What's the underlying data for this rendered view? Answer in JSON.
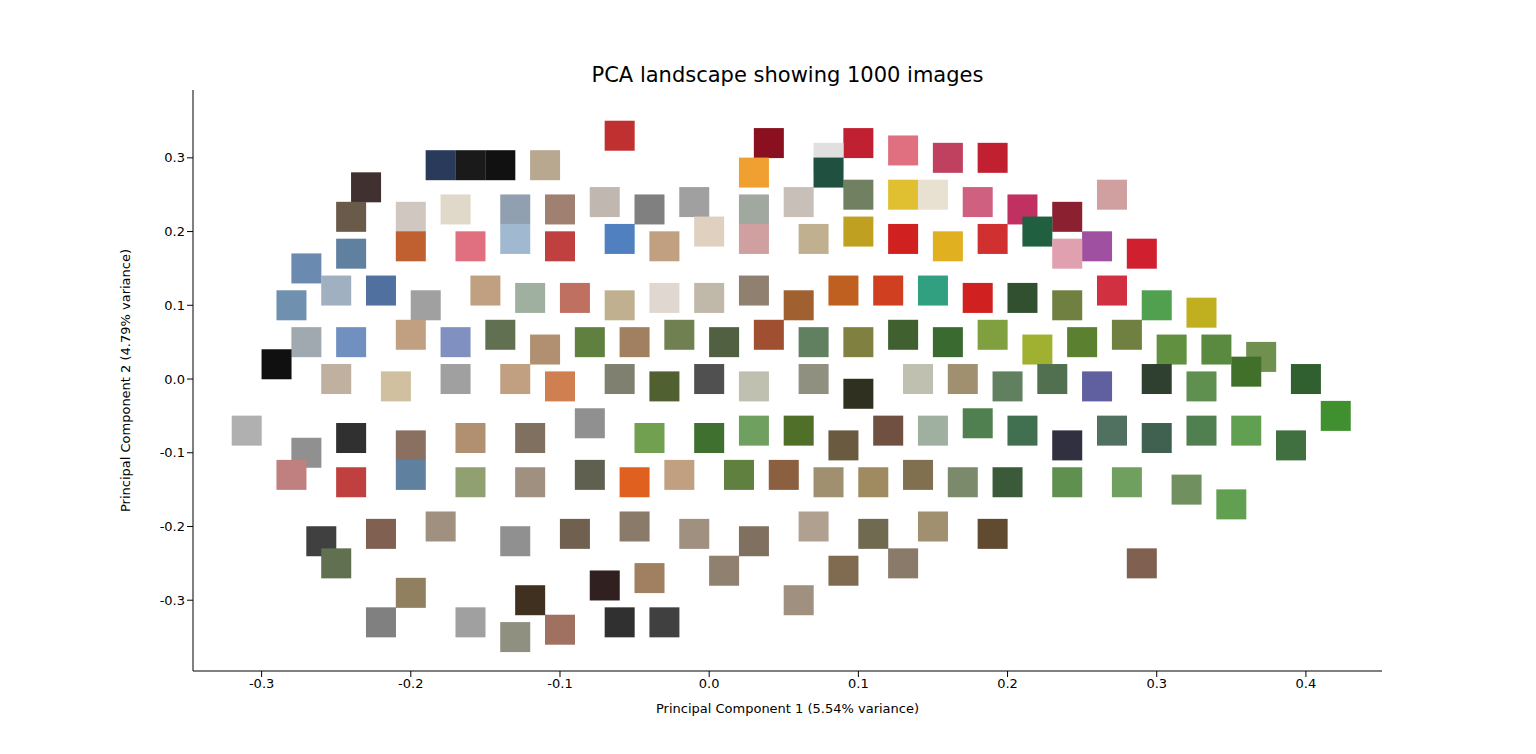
{
  "chart_data": {
    "type": "scatter",
    "title": "PCA landscape showing 1000 images",
    "x_label": "Principal Component 1 (5.54% variance)",
    "y_label": "Principal Component 2 (4.79% variance)",
    "marker": "square",
    "grid": false,
    "xlim": [
      -0.346,
      0.451
    ],
    "ylim": [
      -0.396,
      0.392
    ],
    "xticks": [
      -0.3,
      -0.2,
      -0.1,
      {
        "value": 0,
        "label": "0.0"
      },
      0.1,
      0.2,
      0.3,
      0.4
    ],
    "yticks": [
      -0.3,
      -0.2,
      -0.1,
      {
        "value": 0,
        "label": "0.0"
      },
      0.1,
      0.2,
      0.3
    ],
    "x": [
      -0.18,
      -0.16,
      -0.14,
      -0.11,
      -0.06,
      0.04,
      0.1,
      0.13,
      0.16,
      0.19,
      0.27,
      0.03,
      0.08,
      -0.23,
      -0.24,
      -0.2,
      -0.17,
      -0.13,
      -0.1,
      -0.07,
      -0.04,
      -0.01,
      0.03,
      0.06,
      0.1,
      0.13,
      0.15,
      0.18,
      0.21,
      0.24,
      0.08,
      -0.27,
      -0.24,
      -0.2,
      -0.16,
      -0.13,
      -0.1,
      -0.06,
      -0.03,
      0.0,
      0.03,
      0.07,
      0.1,
      0.13,
      0.16,
      0.19,
      0.22,
      0.26,
      0.29,
      0.24,
      -0.28,
      -0.25,
      -0.22,
      -0.19,
      -0.15,
      -0.12,
      -0.09,
      -0.06,
      -0.03,
      0.0,
      0.03,
      0.06,
      0.09,
      0.12,
      0.15,
      0.18,
      0.21,
      0.24,
      0.27,
      0.3,
      0.33,
      -0.27,
      -0.24,
      -0.2,
      -0.17,
      -0.14,
      -0.11,
      -0.08,
      -0.05,
      -0.02,
      0.01,
      0.04,
      0.07,
      0.1,
      0.13,
      0.16,
      0.19,
      0.22,
      0.25,
      0.28,
      0.31,
      0.34,
      0.37,
      -0.29,
      -0.25,
      -0.21,
      -0.17,
      -0.13,
      -0.1,
      -0.06,
      -0.03,
      0.0,
      0.03,
      0.07,
      0.1,
      0.14,
      0.17,
      0.2,
      0.23,
      0.26,
      0.3,
      0.33,
      0.36,
      0.4,
      0.42,
      -0.31,
      -0.27,
      -0.24,
      -0.2,
      -0.16,
      -0.12,
      -0.08,
      -0.04,
      0.0,
      0.03,
      0.06,
      0.09,
      0.12,
      0.15,
      0.18,
      0.21,
      0.24,
      0.27,
      0.3,
      0.33,
      0.36,
      0.39,
      -0.28,
      -0.24,
      -0.2,
      -0.16,
      -0.12,
      -0.08,
      -0.05,
      -0.02,
      0.02,
      0.05,
      0.08,
      0.11,
      0.14,
      0.17,
      0.2,
      0.24,
      0.28,
      0.32,
      0.35,
      -0.26,
      -0.22,
      -0.18,
      -0.13,
      -0.09,
      -0.05,
      -0.01,
      0.03,
      0.07,
      0.11,
      0.15,
      0.19,
      0.29,
      -0.25,
      -0.22,
      -0.2,
      -0.16,
      -0.13,
      -0.1,
      -0.12,
      -0.07,
      -0.04,
      -0.06,
      -0.03,
      0.01,
      0.06,
      0.09,
      0.13
    ],
    "values": [
      0.29,
      0.29,
      0.29,
      0.29,
      0.33,
      0.32,
      0.32,
      0.31,
      0.3,
      0.3,
      0.25,
      0.28,
      0.3,
      0.26,
      0.22,
      0.22,
      0.23,
      0.23,
      0.23,
      0.24,
      0.23,
      0.24,
      0.23,
      0.24,
      0.25,
      0.25,
      0.25,
      0.24,
      0.23,
      0.22,
      0.28,
      0.15,
      0.17,
      0.18,
      0.18,
      0.19,
      0.18,
      0.19,
      0.18,
      0.2,
      0.19,
      0.19,
      0.2,
      0.19,
      0.18,
      0.19,
      0.2,
      0.18,
      0.17,
      0.17,
      0.1,
      0.12,
      0.12,
      0.1,
      0.12,
      0.11,
      0.11,
      0.1,
      0.11,
      0.11,
      0.12,
      0.1,
      0.12,
      0.12,
      0.12,
      0.11,
      0.11,
      0.1,
      0.12,
      0.1,
      0.09,
      0.05,
      0.05,
      0.06,
      0.05,
      0.06,
      0.04,
      0.05,
      0.05,
      0.06,
      0.05,
      0.06,
      0.05,
      0.05,
      0.06,
      0.05,
      0.06,
      0.04,
      0.05,
      0.06,
      0.04,
      0.04,
      0.03,
      0.02,
      0.0,
      -0.01,
      0.0,
      0.0,
      -0.01,
      0.0,
      -0.01,
      0.0,
      -0.01,
      0.0,
      -0.02,
      0.0,
      0.0,
      -0.01,
      0.0,
      -0.01,
      0.0,
      -0.01,
      0.01,
      0.0,
      -0.05,
      -0.07,
      -0.1,
      -0.08,
      -0.09,
      -0.08,
      -0.08,
      -0.06,
      -0.08,
      -0.08,
      -0.07,
      -0.07,
      -0.09,
      -0.07,
      -0.07,
      -0.06,
      -0.07,
      -0.09,
      -0.07,
      -0.08,
      -0.07,
      -0.07,
      -0.09,
      -0.13,
      -0.14,
      -0.13,
      -0.14,
      -0.14,
      -0.13,
      -0.14,
      -0.13,
      -0.13,
      -0.13,
      -0.14,
      -0.14,
      -0.13,
      -0.14,
      -0.14,
      -0.14,
      -0.14,
      -0.15,
      -0.17,
      -0.22,
      -0.21,
      -0.2,
      -0.22,
      -0.21,
      -0.2,
      -0.21,
      -0.22,
      -0.2,
      -0.21,
      -0.2,
      -0.21,
      -0.25,
      -0.25,
      -0.33,
      -0.29,
      -0.33,
      -0.35,
      -0.34,
      -0.3,
      -0.28,
      -0.27,
      -0.33,
      -0.33,
      -0.26,
      -0.3,
      -0.26,
      -0.25
    ],
    "colors": [
      "#2a3a5a",
      "#1a1a1a",
      "#111111",
      "#b8a890",
      "#c03030",
      "#8a1020",
      "#c02030",
      "#e07080",
      "#c04060",
      "#c02030",
      "#d0a0a0",
      "#f0a030",
      "#e0e0e0",
      "#403030",
      "#6a5a4a",
      "#d0c8c0",
      "#e0d8c8",
      "#90a0b0",
      "#a08070",
      "#c0b8b0",
      "#808080",
      "#a0a0a0",
      "#a0a8a0",
      "#c8c0b8",
      "#708060",
      "#e0c030",
      "#e8e0d0",
      "#d06080",
      "#c03060",
      "#8a2030",
      "#205040",
      "#6a8ab0",
      "#6080a0",
      "#c06030",
      "#e07080",
      "#a0b8d0",
      "#c04040",
      "#5080c0",
      "#c0a080",
      "#e0d0c0",
      "#d0a0a0",
      "#c0b090",
      "#c0a020",
      "#d02020",
      "#e0b020",
      "#d03030",
      "#206040",
      "#a050a0",
      "#d02030",
      "#e0a0b0",
      "#7090b0",
      "#a0b0c0",
      "#5070a0",
      "#a0a0a0",
      "#c0a080",
      "#a0b0a0",
      "#c07060",
      "#c0b090",
      "#e0d8d0",
      "#c0b8a8",
      "#908070",
      "#a06030",
      "#c06020",
      "#d04020",
      "#30a080",
      "#d02020",
      "#305030",
      "#708040",
      "#d03040",
      "#50a050",
      "#c0b020",
      "#a0a8b0",
      "#7090c0",
      "#c0a080",
      "#8090c0",
      "#607050",
      "#b09070",
      "#608040",
      "#a08060",
      "#708050",
      "#506040",
      "#a05030",
      "#608060",
      "#808040",
      "#406030",
      "#3a6a30",
      "#80a040",
      "#a0b030",
      "#5a8030",
      "#708040",
      "#609040",
      "#5a8a40",
      "#709050",
      "#101010",
      "#c0b0a0",
      "#d0c0a0",
      "#a0a0a0",
      "#c0a080",
      "#d08050",
      "#808070",
      "#506030",
      "#505050",
      "#c0c0b0",
      "#909080",
      "#303020",
      "#c0c0b0",
      "#a09070",
      "#608060",
      "#507050",
      "#6060a0",
      "#304030",
      "#609050",
      "#40702a",
      "#306030",
      "#409030",
      "#b0b0b0",
      "#909090",
      "#303030",
      "#8a7060",
      "#b09070",
      "#807060",
      "#909090",
      "#70a050",
      "#407030",
      "#70a060",
      "#50702a",
      "#6a5a40",
      "#705040",
      "#a0b0a0",
      "#508050",
      "#407050",
      "#303040",
      "#507060",
      "#406050",
      "#508050",
      "#60a050",
      "#407040",
      "#c08080",
      "#c04040",
      "#6080a0",
      "#90a070",
      "#a09080",
      "#606050",
      "#e06020",
      "#c0a080",
      "#608040",
      "#8a6040",
      "#a09070",
      "#a08a60",
      "#807050",
      "#7a8a6a",
      "#3a5a3a",
      "#609050",
      "#70a060",
      "#709060",
      "#60a050",
      "#404040",
      "#806050",
      "#a09080",
      "#909090",
      "#706050",
      "#8a7a6a",
      "#a09080",
      "#807060",
      "#b0a090",
      "#706a50",
      "#a09070",
      "#604a30",
      "#806050",
      "#607050",
      "#808080",
      "#908060",
      "#a0a0a0",
      "#909080",
      "#a07060",
      "#403020",
      "#302020",
      "#a08060",
      "#303030",
      "#404040",
      "#908070",
      "#a09080",
      "#806a50",
      "#8a7a6a"
    ]
  }
}
